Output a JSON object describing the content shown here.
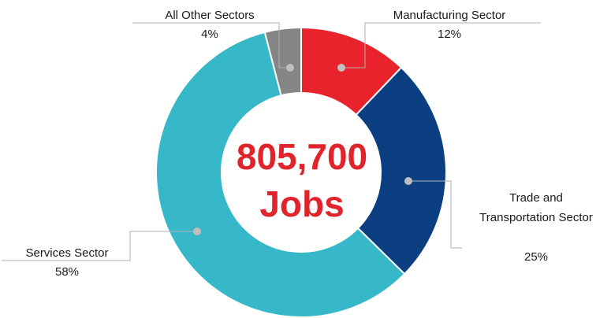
{
  "chart_data": {
    "type": "pie",
    "variant": "donut",
    "center_text": {
      "line1": "805,700",
      "line2": "Jobs"
    },
    "slices": [
      {
        "name": "Manufacturing Sector",
        "label_lines": [
          "Manufacturing Sector"
        ],
        "value": 12,
        "pct_label": "12%",
        "color": "#e8232b"
      },
      {
        "name": "Trade and Transportation Sector",
        "label_lines": [
          "Trade and",
          "Transportation Sector"
        ],
        "value": 25,
        "pct_label": "25%",
        "color": "#0b3f82"
      },
      {
        "name": "Services Sector",
        "label_lines": [
          "Services Sector"
        ],
        "value": 58,
        "pct_label": "58%",
        "color": "#36b8c8"
      },
      {
        "name": "All Other Sectors",
        "label_lines": [
          "All Other Sectors"
        ],
        "value": 4,
        "pct_label": "4%",
        "color": "#858585"
      }
    ],
    "leader_line_color": "#b0b0b0",
    "marker_color": "#bfbfbf"
  }
}
